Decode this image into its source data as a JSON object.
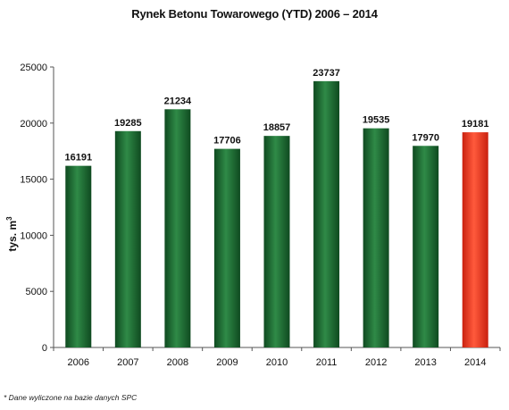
{
  "chart_data": {
    "type": "bar",
    "title": "Rynek Betonu Towarowego (YTD) 2006 – 2014",
    "xlabel": "",
    "ylabel": "tys. m",
    "ylabel_superscript": "3",
    "categories": [
      "2006",
      "2007",
      "2008",
      "2009",
      "2010",
      "2011",
      "2012",
      "2013",
      "2014"
    ],
    "values": [
      16191,
      19285,
      21234,
      17706,
      18857,
      23737,
      19535,
      17970,
      19181
    ],
    "ylim": [
      0,
      25000
    ],
    "yticks": [
      0,
      5000,
      10000,
      15000,
      20000,
      25000
    ],
    "grid": false,
    "colors": {
      "default_bar": "#1f6b35",
      "highlight_bar": "#e8331f",
      "axis": "#555555"
    },
    "highlight_index": 8,
    "footnote": "* Dane wyliczone na bazie danych SPC"
  }
}
